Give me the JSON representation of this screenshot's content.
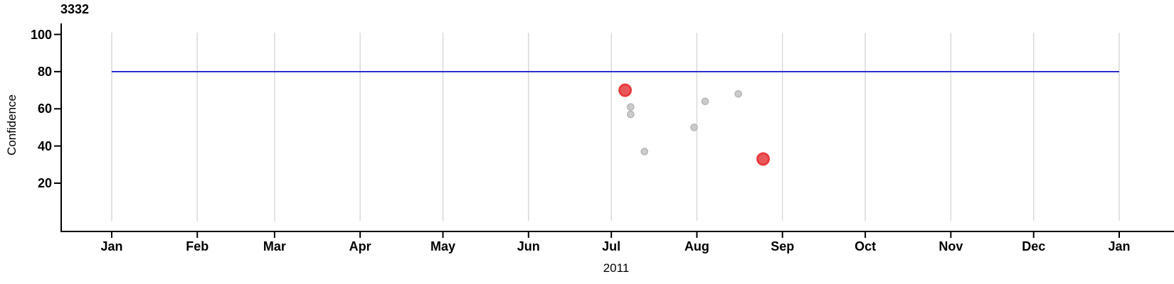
{
  "chart_data": {
    "type": "scatter",
    "title": "3332",
    "xlabel": "2011",
    "ylabel": "Confidence",
    "x_axis": {
      "unit": "months",
      "tick_labels": [
        "Jan",
        "Feb",
        "Mar",
        "Apr",
        "May",
        "Jun",
        "Jul",
        "Aug",
        "Sep",
        "Oct",
        "Nov",
        "Dec",
        "Jan"
      ],
      "tick_day_of_year": [
        0,
        31,
        59,
        90,
        120,
        151,
        181,
        212,
        243,
        273,
        304,
        334,
        365
      ],
      "span_days": 365,
      "grid": true
    },
    "y_axis": {
      "ticks": [
        20,
        40,
        60,
        80,
        100
      ],
      "range": [
        0,
        105
      ],
      "grid": false
    },
    "reference_line": {
      "value": 80,
      "color": "#1414cc"
    },
    "points": [
      {
        "date": "2011-07-06",
        "day_of_year": 186,
        "value": 70,
        "highlighted": true
      },
      {
        "date": "2011-07-08",
        "day_of_year": 188,
        "value": 61,
        "highlighted": false
      },
      {
        "date": "2011-07-08",
        "day_of_year": 188,
        "value": 57,
        "highlighted": false
      },
      {
        "date": "2011-07-13",
        "day_of_year": 193,
        "value": 37,
        "highlighted": false
      },
      {
        "date": "2011-07-31",
        "day_of_year": 211,
        "value": 50,
        "highlighted": false
      },
      {
        "date": "2011-08-04",
        "day_of_year": 215,
        "value": 64,
        "highlighted": false
      },
      {
        "date": "2011-08-16",
        "day_of_year": 227,
        "value": 68,
        "highlighted": false
      },
      {
        "date": "2011-08-25",
        "day_of_year": 236,
        "value": 33,
        "highlighted": true
      }
    ],
    "colors": {
      "point_fill": "#cbcbcb",
      "point_stroke": "#b0b0b0",
      "highlight_fill": "#e8595b",
      "highlight_stroke": "#e8393c",
      "grid_line": "#d9d9d9",
      "axis": "#000000",
      "reference": "#1414cc"
    }
  }
}
